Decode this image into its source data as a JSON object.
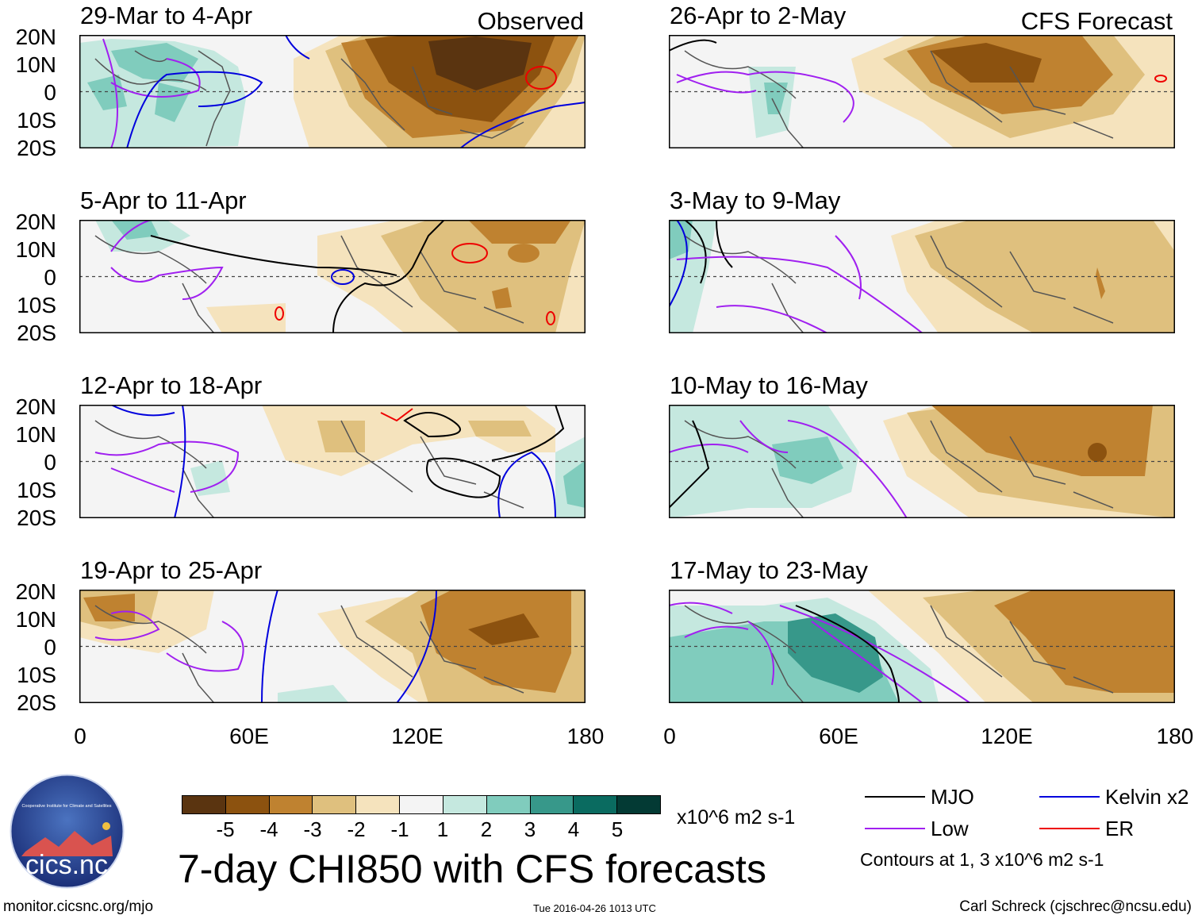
{
  "title": "7-day CHI850 with CFS forecasts",
  "observed_label": "Observed",
  "forecast_label": "CFS Forecast",
  "lat_labels": [
    "20N",
    "10N",
    "0",
    "10S",
    "20S"
  ],
  "lon_labels": [
    "0",
    "60E",
    "120E",
    "180"
  ],
  "panels": {
    "left": [
      {
        "title": "29-Mar to 4-Apr"
      },
      {
        "title": "5-Apr to 11-Apr"
      },
      {
        "title": "12-Apr to 18-Apr"
      },
      {
        "title": "19-Apr to 25-Apr"
      }
    ],
    "right": [
      {
        "title": "26-Apr to 2-May"
      },
      {
        "title": "3-May to 9-May"
      },
      {
        "title": "10-May to 16-May"
      },
      {
        "title": "17-May to 23-May"
      }
    ]
  },
  "colorbar": {
    "ticks": [
      "-5",
      "-4",
      "-3",
      "-2",
      "-1",
      "1",
      "2",
      "3",
      "4",
      "5"
    ],
    "colors": [
      "#5a3410",
      "#8c520f",
      "#bf8230",
      "#dfc07e",
      "#f5e3bd",
      "#f4f4f4",
      "#c5e8df",
      "#80ccbd",
      "#37988a",
      "#0a6b60",
      "#033a34"
    ],
    "units": "x10^6 m2 s-1"
  },
  "legend": {
    "items": [
      {
        "label": "MJO",
        "color": "#000000"
      },
      {
        "label": "Kelvin x2",
        "color": "#0000dd"
      },
      {
        "label": "Low",
        "color": "#a020f0"
      },
      {
        "label": "ER",
        "color": "#ee0000"
      }
    ],
    "contour_note": "Contours at 1, 3 x10^6 m2 s-1"
  },
  "logo_text": "cics.nc",
  "logo_ring_text": "Cooperative Institute for Climate and Satellites",
  "footer": {
    "left": "monitor.cicsnc.org/mjo",
    "center": "Tue 2016-04-26 1013 UTC",
    "right": "Carl Schreck (cjschrec@ncsu.edu)"
  }
}
